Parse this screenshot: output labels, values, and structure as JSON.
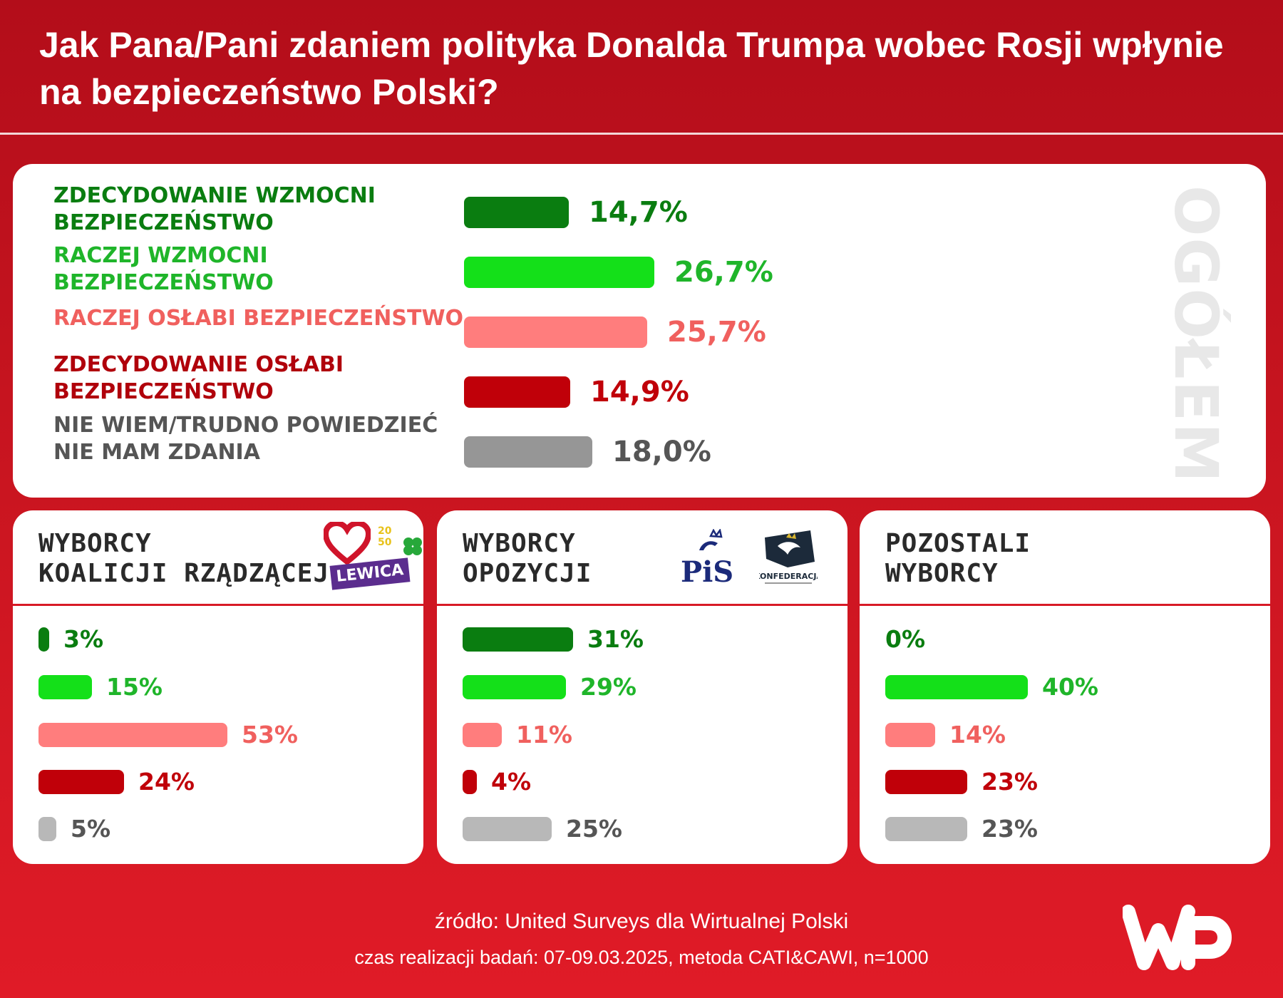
{
  "title": "Jak Pana/Pani zdaniem polityka Donalda Trumpa wobec Rosji wpłynie na bezpieczeństwo Polski?",
  "colors": {
    "strong_strengthen": "#0a7d10",
    "rather_strengthen": "#14e019",
    "rather_weaken": "#ff7d7d",
    "strong_weaken": "#c00009",
    "dont_know": "#969696",
    "dont_know_light": "#b8b8b8"
  },
  "chart_data": [
    {
      "type": "bar",
      "orientation": "horizontal",
      "title": "OGÓŁEM",
      "categories": [
        "ZDECYDOWANIE WZMOCNI BEZPIECZEŃSTWO",
        "RACZEJ WZMOCNI BEZPIECZEŃSTWO",
        "RACZEJ OSŁABI BEZPIECZEŃSTWO",
        "ZDECYDOWANIE OSŁABI BEZPIECZEŃSTWO",
        "NIE WIEM/TRUDNO POWIEDZIEĆ NIE MAM ZDANIA"
      ],
      "category_lines": [
        [
          "ZDECYDOWANIE WZMOCNI",
          "BEZPIECZEŃSTWO"
        ],
        [
          "RACZEJ WZMOCNI",
          "BEZPIECZEŃSTWO"
        ],
        [
          "RACZEJ OSŁABI BEZPIECZEŃSTWO"
        ],
        [
          "ZDECYDOWANIE OSŁABI",
          "BEZPIECZEŃSTWO"
        ],
        [
          "NIE WIEM/TRUDNO POWIEDZIEĆ",
          "NIE MAM ZDANIA"
        ]
      ],
      "values": [
        14.7,
        26.7,
        25.7,
        14.9,
        18.0
      ],
      "value_labels": [
        "14,7%",
        "26,7%",
        "25,7%",
        "14,9%",
        "18,0%"
      ]
    },
    {
      "type": "bar",
      "orientation": "horizontal",
      "title": "WYBORCY KOALICJI RZĄDZĄCEJ",
      "title_lines": [
        "WYBORCY",
        "KOALICJI RZĄDZĄCEJ"
      ],
      "values": [
        3,
        15,
        53,
        24,
        5
      ],
      "value_labels": [
        "3%",
        "15%",
        "53%",
        "24%",
        "5%"
      ]
    },
    {
      "type": "bar",
      "orientation": "horizontal",
      "title": "WYBORCY OPOZYCJI",
      "title_lines": [
        "WYBORCY",
        "OPOZYCJI"
      ],
      "values": [
        31,
        29,
        11,
        4,
        25
      ],
      "value_labels": [
        "31%",
        "29%",
        "11%",
        "4%",
        "25%"
      ]
    },
    {
      "type": "bar",
      "orientation": "horizontal",
      "title": "POZOSTALI WYBORCY",
      "title_lines": [
        "POZOSTALI",
        "WYBORCY"
      ],
      "values": [
        0,
        40,
        14,
        23,
        23
      ],
      "value_labels": [
        "0%",
        "40%",
        "14%",
        "23%",
        "23%"
      ]
    }
  ],
  "logos": {
    "lewica": "LEWICA",
    "pis": "PiS",
    "konfederacja": "KONFEDERACJA"
  },
  "footer": {
    "source": "źródło: United Surveys dla Wirtualnej Polski",
    "method": "czas realizacji badań: 07-09.03.2025, metoda CATI&CAWI, n=1000"
  }
}
